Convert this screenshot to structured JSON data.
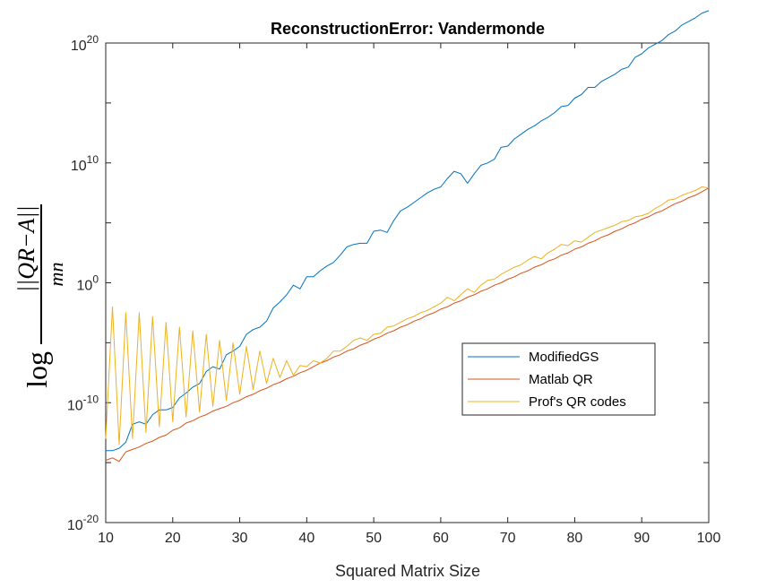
{
  "chart_data": {
    "type": "line",
    "title": "ReconstructionError: Vandermonde",
    "xlabel": "Squared Matrix Size",
    "ylabel_prefix": "log",
    "ylabel_numerator": "||QR−A||",
    "ylabel_denominator": "mn",
    "xlim": [
      10,
      100
    ],
    "ylim_exponent": [
      -20,
      20
    ],
    "y_scale": "log",
    "x_ticks": [
      10,
      20,
      30,
      40,
      50,
      60,
      70,
      80,
      90,
      100
    ],
    "y_tick_exponents": [
      -20,
      -10,
      0,
      10,
      20
    ],
    "y_tick_base": "10",
    "grid": false,
    "legend_position": "right-center",
    "series": [
      {
        "name": "ModifiedGS",
        "color": "#0072BD",
        "x": [
          10,
          11,
          12,
          13,
          14,
          15,
          16,
          17,
          18,
          19,
          20,
          21,
          22,
          23,
          24,
          25,
          26,
          27,
          28,
          29,
          30,
          31,
          32,
          33,
          34,
          35,
          36,
          37,
          38,
          39,
          40,
          41,
          42,
          43,
          44,
          45,
          46,
          47,
          48,
          49,
          50,
          51,
          52,
          53,
          54,
          55,
          56,
          57,
          58,
          59,
          60,
          61,
          62,
          63,
          64,
          65,
          66,
          67,
          68,
          69,
          70,
          71,
          72,
          73,
          74,
          75,
          76,
          77,
          78,
          79,
          80,
          81,
          82,
          83,
          84,
          85,
          86,
          87,
          88,
          89,
          90,
          91,
          92,
          93,
          94,
          95,
          96,
          97,
          98,
          99,
          100
        ],
        "log10_y": [
          -14,
          -14,
          -13.8,
          -13.3,
          -11.8,
          -11.6,
          -11.8,
          -11.0,
          -10.6,
          -10.6,
          -10.4,
          -9.6,
          -9.2,
          -8.7,
          -8.4,
          -7.4,
          -7.0,
          -7.2,
          -6.0,
          -5.7,
          -5.3,
          -4.3,
          -3.9,
          -3.7,
          -3.2,
          -2.1,
          -1.6,
          -1.0,
          -0.2,
          -0.5,
          0.5,
          0.5,
          1.0,
          1.4,
          1.7,
          2.3,
          3.0,
          3.2,
          3.3,
          3.3,
          4.3,
          4.4,
          4.2,
          5.2,
          6.0,
          6.3,
          6.7,
          7.1,
          7.5,
          7.8,
          8.0,
          8.7,
          9.3,
          9.1,
          8.3,
          9.1,
          9.8,
          10.0,
          10.3,
          11.3,
          11.4,
          12.0,
          12.4,
          12.8,
          13.1,
          13.5,
          13.8,
          14.2,
          14.7,
          14.8,
          15.4,
          15.7,
          16.3,
          16.3,
          16.8,
          17.1,
          17.4,
          17.8,
          18.0,
          18.8,
          19.1,
          19.6,
          19.9,
          20.2,
          20.7,
          21.0,
          21.5,
          21.8,
          22.1,
          22.5,
          22.7
        ],
        "note_no": null
      },
      {
        "name": "Matlab QR",
        "color": "#D95319",
        "x": [
          10,
          11,
          12,
          13,
          14,
          15,
          16,
          17,
          18,
          19,
          20,
          21,
          22,
          23,
          24,
          25,
          26,
          27,
          28,
          29,
          30,
          31,
          32,
          33,
          34,
          35,
          36,
          37,
          38,
          39,
          40,
          41,
          42,
          43,
          44,
          45,
          46,
          47,
          48,
          49,
          50,
          51,
          52,
          53,
          54,
          55,
          56,
          57,
          58,
          59,
          60,
          61,
          62,
          63,
          64,
          65,
          66,
          67,
          68,
          69,
          70,
          71,
          72,
          73,
          74,
          75,
          76,
          77,
          78,
          79,
          80,
          81,
          82,
          83,
          84,
          85,
          86,
          87,
          88,
          89,
          90,
          91,
          92,
          93,
          94,
          95,
          96,
          97,
          98,
          99,
          100
        ],
        "log10_y": [
          -14.8,
          -14.6,
          -14.9,
          -14.1,
          -13.9,
          -13.7,
          -13.4,
          -13.2,
          -12.9,
          -12.7,
          -12.3,
          -12.1,
          -11.7,
          -11.5,
          -11.2,
          -11.0,
          -10.7,
          -10.5,
          -10.3,
          -10.0,
          -9.8,
          -9.5,
          -9.3,
          -9.0,
          -8.8,
          -8.5,
          -8.3,
          -8.0,
          -7.8,
          -7.5,
          -7.3,
          -7.0,
          -6.7,
          -6.5,
          -6.2,
          -6.0,
          -5.7,
          -5.5,
          -5.2,
          -5.0,
          -4.7,
          -4.5,
          -4.2,
          -4.0,
          -3.7,
          -3.5,
          -3.2,
          -3.0,
          -2.7,
          -2.5,
          -2.2,
          -2.0,
          -1.7,
          -1.5,
          -1.2,
          -1.0,
          -0.7,
          -0.5,
          -0.2,
          0.0,
          0.3,
          0.5,
          0.8,
          1.0,
          1.3,
          1.5,
          1.8,
          2.0,
          2.3,
          2.5,
          2.8,
          3.0,
          3.3,
          3.5,
          3.8,
          4.0,
          4.3,
          4.5,
          4.8,
          5.0,
          5.3,
          5.5,
          5.8,
          6.0,
          6.3,
          6.6,
          6.8,
          7.1,
          7.3,
          7.6,
          7.9
        ],
        "note_no": null
      },
      {
        "name": "Prof's QR codes",
        "color": "#EDB120",
        "x": [
          10,
          11,
          12,
          13,
          14,
          15,
          16,
          17,
          18,
          19,
          20,
          21,
          22,
          23,
          24,
          25,
          26,
          27,
          28,
          29,
          30,
          31,
          32,
          33,
          34,
          35,
          36,
          37,
          38,
          39,
          40,
          41,
          42,
          43,
          44,
          45,
          46,
          47,
          48,
          49,
          50,
          51,
          52,
          53,
          54,
          55,
          56,
          57,
          58,
          59,
          60,
          61,
          62,
          63,
          64,
          65,
          66,
          67,
          68,
          69,
          70,
          71,
          72,
          73,
          74,
          75,
          76,
          77,
          78,
          79,
          80,
          81,
          82,
          83,
          84,
          85,
          86,
          87,
          88,
          89,
          90,
          91,
          92,
          93,
          94,
          95,
          96,
          97,
          98,
          99,
          100
        ],
        "log10_y": [
          -13.0,
          -2.0,
          -13.5,
          -2.5,
          -13.0,
          -2.5,
          -12.5,
          -2.8,
          -12.0,
          -3.3,
          -11.6,
          -3.7,
          -11.2,
          -4.0,
          -10.8,
          -4.3,
          -10.3,
          -4.8,
          -9.8,
          -5.0,
          -9.3,
          -5.3,
          -8.9,
          -5.7,
          -8.4,
          -6.3,
          -7.9,
          -6.5,
          -7.7,
          -6.9,
          -7.0,
          -6.5,
          -6.7,
          -6.3,
          -5.7,
          -5.7,
          -5.3,
          -4.8,
          -4.6,
          -4.8,
          -4.3,
          -4.2,
          -3.7,
          -3.6,
          -3.3,
          -3.0,
          -2.8,
          -2.5,
          -2.3,
          -2.0,
          -1.7,
          -1.2,
          -1.5,
          -1.0,
          -0.5,
          -0.8,
          -0.2,
          0.2,
          0.3,
          0.7,
          1.0,
          1.3,
          1.5,
          1.9,
          2.2,
          2.0,
          2.5,
          2.8,
          3.2,
          3.1,
          3.5,
          3.4,
          3.8,
          4.2,
          4.4,
          4.6,
          4.8,
          5.1,
          5.2,
          5.5,
          5.6,
          5.8,
          6.2,
          6.5,
          6.9,
          7.0,
          7.3,
          7.5,
          7.7,
          8.0,
          7.9
        ],
        "note_no": null
      }
    ]
  }
}
